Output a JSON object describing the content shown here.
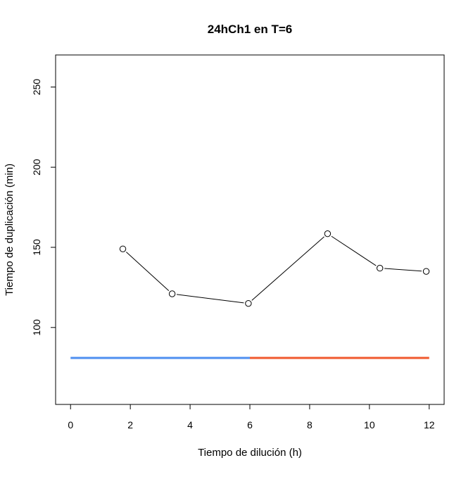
{
  "chart_data": {
    "type": "line",
    "title": "24hCh1 en T=6",
    "xlabel": "Tiempo de dilución (h)",
    "ylabel": "Tiempo de duplicación (min)",
    "xlim": [
      -0.5,
      12.5
    ],
    "ylim": [
      52,
      270
    ],
    "x_ticks": [
      0,
      2,
      4,
      6,
      8,
      10,
      12
    ],
    "y_ticks": [
      100,
      150,
      200,
      250
    ],
    "grid": false,
    "series": [
      {
        "x": [
          1.75,
          3.4,
          5.95,
          8.6,
          10.35,
          11.9
        ],
        "y": [
          149,
          121,
          115,
          158.5,
          137,
          135
        ],
        "color": "#000000",
        "marker": "open-circle"
      }
    ],
    "reference_lines": [
      {
        "x": [
          0,
          6
        ],
        "y": [
          81,
          81
        ],
        "color": "#4f8ff0"
      },
      {
        "x": [
          6,
          12
        ],
        "y": [
          81,
          81
        ],
        "color": "#f0592e"
      }
    ]
  }
}
